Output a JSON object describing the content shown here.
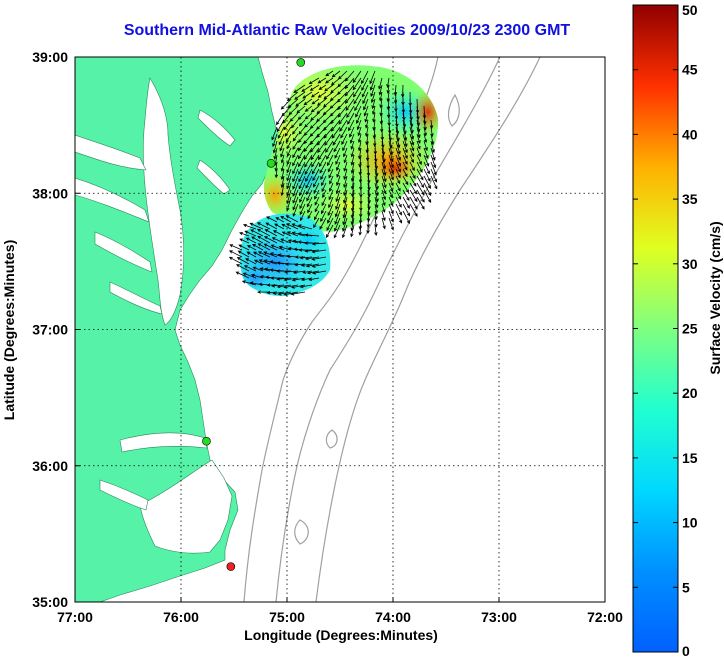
{
  "title": "Southern Mid-Atlantic Raw Velocities 2009/10/23 2300 GMT",
  "map": {
    "xlabel": "Longitude (Degrees:Minutes)",
    "ylabel": "Latitude (Degrees:Minutes)",
    "lon_range": [
      -77,
      -72
    ],
    "lat_range": [
      35,
      39
    ],
    "x_ticks": [
      {
        "value": -77,
        "label": "77:00"
      },
      {
        "value": -76,
        "label": "76:00"
      },
      {
        "value": -75,
        "label": "75:00"
      },
      {
        "value": -74,
        "label": "74:00"
      },
      {
        "value": -73,
        "label": "73:00"
      },
      {
        "value": -72,
        "label": "72:00"
      }
    ],
    "y_ticks": [
      {
        "value": 35,
        "label": "35:00"
      },
      {
        "value": 36,
        "label": "36:00"
      },
      {
        "value": 37,
        "label": "37:00"
      },
      {
        "value": 38,
        "label": "38:00"
      },
      {
        "value": 39,
        "label": "39:00"
      }
    ],
    "grid": "dotted",
    "land_color": "#55f2a8",
    "stations": [
      {
        "lon": -74.87,
        "lat": 38.96,
        "color": "#22dd22"
      },
      {
        "lon": -75.15,
        "lat": 38.22,
        "color": "#22dd22"
      },
      {
        "lon": -75.76,
        "lat": 36.18,
        "color": "#22dd22"
      },
      {
        "lon": -75.53,
        "lat": 35.26,
        "color": "#ee2222"
      }
    ]
  },
  "colorbar": {
    "label": "Surface Velocity (cm/s)",
    "min": 0,
    "max": 50,
    "ticks": [
      {
        "value": 0,
        "label": "0"
      },
      {
        "value": 5,
        "label": "5"
      },
      {
        "value": 10,
        "label": "10"
      },
      {
        "value": 15,
        "label": "15"
      },
      {
        "value": 20,
        "label": "20"
      },
      {
        "value": 25,
        "label": "25"
      },
      {
        "value": 30,
        "label": "30"
      },
      {
        "value": 35,
        "label": "35"
      },
      {
        "value": 40,
        "label": "40"
      },
      {
        "value": 45,
        "label": "45"
      },
      {
        "value": 50,
        "label": "50"
      }
    ]
  },
  "velocity_field": {
    "northern_patch_speed_cm_s": [
      8,
      38
    ],
    "southern_patch_speed_cm_s": [
      5,
      14
    ]
  }
}
